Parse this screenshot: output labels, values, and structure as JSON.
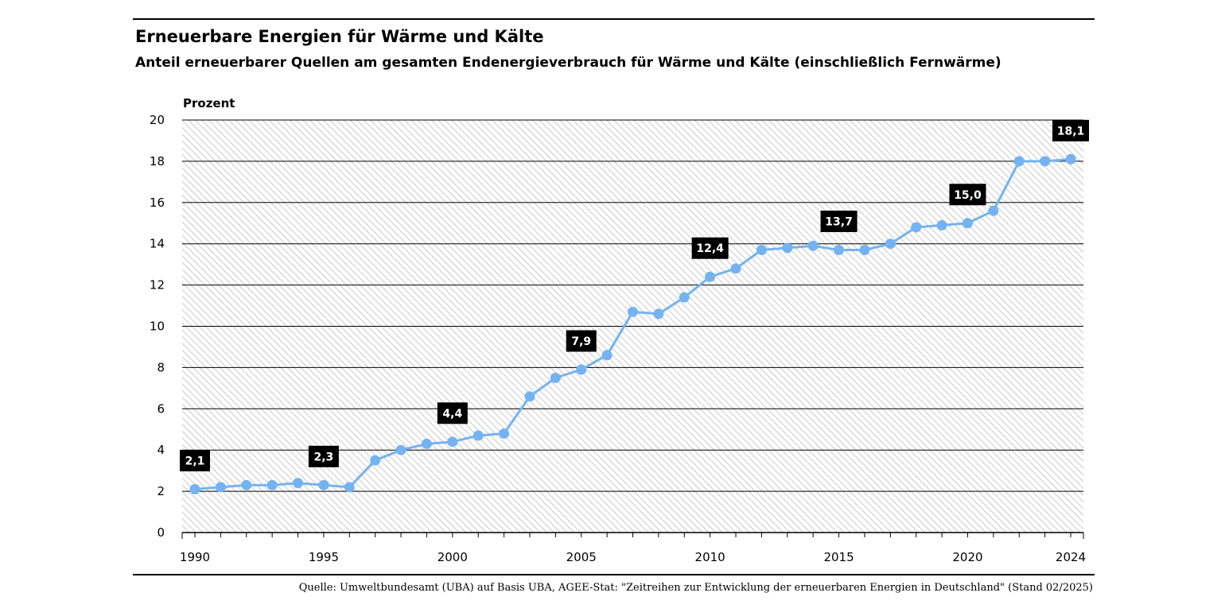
{
  "header": {
    "title": "Erneuerbare Energien für Wärme und Kälte",
    "subtitle": "Anteil erneuerbarer Quellen am gesamten Endenergieverbrauch für Wärme und Kälte (einschließlich Fernwärme)"
  },
  "footer": {
    "source": "Quelle: Umweltbundesamt (UBA) auf Basis UBA, AGEE-Stat: \"Zeitreihen zur Entwicklung der erneuerbaren Energien in Deutschland\" (Stand 02/2025)"
  },
  "chart_data": {
    "type": "line",
    "ylabel": "Prozent",
    "ylim": [
      0,
      20
    ],
    "yticks": [
      0,
      2,
      4,
      6,
      8,
      10,
      12,
      14,
      16,
      18,
      20
    ],
    "xlim": [
      1990,
      2024
    ],
    "xticks": [
      1990,
      1995,
      2000,
      2005,
      2010,
      2015,
      2020,
      2024
    ],
    "grid": true,
    "line_color": "#74b3f1",
    "series": [
      {
        "x": [
          1990,
          1991,
          1992,
          1993,
          1994,
          1995,
          1996,
          1997,
          1998,
          1999,
          2000,
          2001,
          2002,
          2003,
          2004,
          2005,
          2006,
          2007,
          2008,
          2009,
          2010,
          2011,
          2012,
          2013,
          2014,
          2015,
          2016,
          2017,
          2018,
          2019,
          2020,
          2021,
          2022,
          2023,
          2024
        ],
        "values": [
          2.1,
          2.2,
          2.3,
          2.3,
          2.4,
          2.3,
          2.2,
          3.5,
          4.0,
          4.3,
          4.4,
          4.7,
          4.8,
          6.6,
          7.5,
          7.9,
          8.6,
          10.7,
          10.6,
          11.4,
          12.4,
          12.8,
          13.7,
          13.8,
          13.9,
          13.7,
          13.7,
          14.0,
          14.8,
          14.9,
          15.0,
          15.6,
          18.0,
          18.0,
          18.1
        ]
      }
    ],
    "data_labels": [
      {
        "x": 1990,
        "text": "2,1"
      },
      {
        "x": 1995,
        "text": "2,3"
      },
      {
        "x": 2000,
        "text": "4,4"
      },
      {
        "x": 2005,
        "text": "7,9"
      },
      {
        "x": 2010,
        "text": "12,4"
      },
      {
        "x": 2015,
        "text": "13,7"
      },
      {
        "x": 2020,
        "text": "15,0"
      },
      {
        "x": 2024,
        "text": "18,1"
      }
    ]
  }
}
